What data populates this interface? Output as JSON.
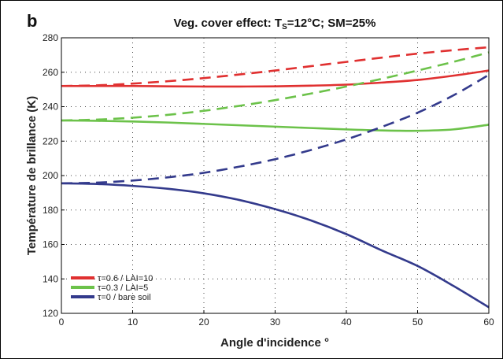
{
  "panel_label": "b",
  "chart_data": {
    "type": "line",
    "title": {
      "prefix": "Veg. cover effect: T",
      "subscript": "S",
      "suffix": "=12°C; SM=25%"
    },
    "xlabel": "Angle d'incidence °",
    "ylabel": "Température de brillance (K)",
    "xlim": [
      0,
      60
    ],
    "ylim": [
      120,
      280
    ],
    "xticks": [
      "0",
      "10",
      "20",
      "30",
      "40",
      "50",
      "60"
    ],
    "yticks": [
      "120",
      "140",
      "160",
      "180",
      "200",
      "220",
      "240",
      "260",
      "280"
    ],
    "grid": true,
    "legend_position": "bottom-left",
    "x": [
      0,
      5,
      10,
      15,
      20,
      25,
      30,
      35,
      40,
      45,
      50,
      55,
      60
    ],
    "series": [
      {
        "name": "τ=0.6 / LAI=10",
        "color": "#e03030",
        "style": "solid",
        "values": [
          252,
          252,
          252,
          251.8,
          251.7,
          251.7,
          251.8,
          252.2,
          252.8,
          254,
          255.5,
          258,
          261
        ]
      },
      {
        "name": "",
        "color": "#e03030",
        "style": "dashed",
        "values": [
          252,
          252.4,
          253.4,
          254.8,
          256.6,
          258.7,
          261,
          263.5,
          266,
          268.5,
          270.8,
          272.8,
          274.5
        ]
      },
      {
        "name": "τ=0.3 / LAI=5",
        "color": "#6cc24a",
        "style": "solid",
        "values": [
          232,
          231.8,
          231.4,
          230.8,
          230,
          229.2,
          228.4,
          227.6,
          226.8,
          226.2,
          226,
          226.8,
          229.5
        ]
      },
      {
        "name": "",
        "color": "#6cc24a",
        "style": "dashed",
        "values": [
          232,
          232.5,
          233.6,
          235.3,
          237.6,
          240.5,
          243.8,
          247.6,
          251.7,
          256.2,
          261,
          266,
          271.5
        ]
      },
      {
        "name": "τ=0 / bare soil",
        "color": "#333a8c",
        "style": "solid",
        "values": [
          195.5,
          195.1,
          194,
          192.3,
          189.7,
          185.8,
          180.5,
          174,
          166,
          156.5,
          147.5,
          136,
          123.5
        ]
      },
      {
        "name": "",
        "color": "#333a8c",
        "style": "dashed",
        "values": [
          195.5,
          195.9,
          197.1,
          199,
          201.6,
          205.2,
          209.5,
          214.8,
          221,
          228.3,
          236.5,
          246.5,
          258.5
        ]
      }
    ],
    "legend": [
      {
        "label": "τ=0.6 / LAI=10",
        "color": "#e03030"
      },
      {
        "label": "τ=0.3 / LAI=5",
        "color": "#6cc24a"
      },
      {
        "label": "τ=0 / bare soil",
        "color": "#333a8c"
      }
    ]
  }
}
